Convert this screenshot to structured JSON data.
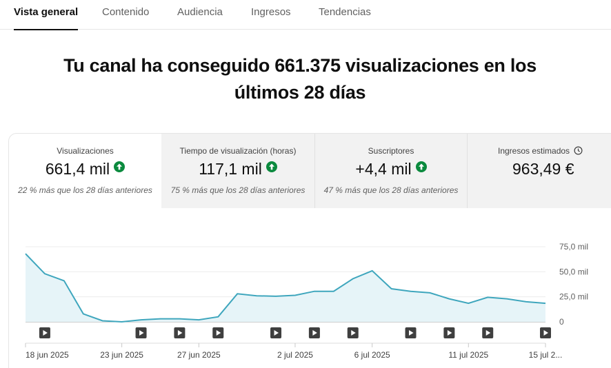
{
  "tabs": [
    {
      "label": "Vista general",
      "active": true
    },
    {
      "label": "Contenido",
      "active": false
    },
    {
      "label": "Audiencia",
      "active": false
    },
    {
      "label": "Ingresos",
      "active": false
    },
    {
      "label": "Tendencias",
      "active": false
    }
  ],
  "headline": {
    "line1": "Tu canal ha conseguido 661.375 visualizaciones en los",
    "line2": "últimos 28 días"
  },
  "metrics": [
    {
      "label": "Visualizaciones",
      "value": "661,4 mil",
      "trend": "up",
      "sub": "22 % más que los 28 días anteriores"
    },
    {
      "label": "Tiempo de visualización (horas)",
      "value": "117,1 mil",
      "trend": "up",
      "sub": "75 % más que los 28 días anteriores"
    },
    {
      "label": "Suscriptores",
      "value": "+4,4 mil",
      "trend": "up",
      "sub": "47 % más que los 28 días anteriores"
    },
    {
      "label": "Ingresos estimados",
      "value": "963,49 €",
      "icon": "clock-icon"
    }
  ],
  "colors": {
    "line": "#3ea6bd",
    "fill": "#e6f4f8",
    "trend_up": "#0b8a3e"
  },
  "chart_data": {
    "type": "area",
    "x": [
      "18 jun 2025",
      "19 jun 2025",
      "20 jun 2025",
      "21 jun 2025",
      "22 jun 2025",
      "23 jun 2025",
      "24 jun 2025",
      "25 jun 2025",
      "26 jun 2025",
      "27 jun 2025",
      "28 jun 2025",
      "29 jun 2025",
      "30 jun 2025",
      "1 jul 2025",
      "2 jul 2025",
      "3 jul 2025",
      "4 jul 2025",
      "5 jul 2025",
      "6 jul 2025",
      "7 jul 2025",
      "8 jul 2025",
      "9 jul 2025",
      "10 jul 2025",
      "11 jul 2025",
      "12 jul 2025",
      "13 jul 2025",
      "14 jul 2025",
      "15 jul 2025"
    ],
    "values": [
      68,
      48,
      41,
      8,
      1,
      0,
      2,
      3,
      3,
      2,
      5,
      28,
      26,
      25.5,
      26.5,
      30.5,
      30.5,
      43,
      51,
      33,
      30.5,
      29,
      23,
      18.5,
      24.5,
      23,
      20,
      18.5
    ],
    "tick_labels": [
      "18 jun 2025",
      "23 jun 2025",
      "27 jun 2025",
      "2 jul 2025",
      "6 jul 2025",
      "11 jul 2025",
      "15 jul 2..."
    ],
    "tick_indices": [
      0,
      5,
      9,
      14,
      18,
      23,
      27
    ],
    "video_markers": [
      1,
      6,
      8,
      10,
      13,
      15,
      17,
      20,
      22,
      24,
      27
    ],
    "y_ticks": [
      0,
      25,
      50,
      75
    ],
    "y_tick_labels": [
      "0",
      "25,0 mil",
      "50,0 mil",
      "75,0 mil"
    ],
    "ylim": [
      0,
      75
    ],
    "grid": true
  }
}
